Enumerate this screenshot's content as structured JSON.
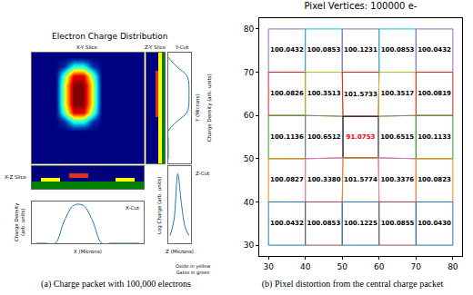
{
  "chart_data": [
    {
      "type": "composite",
      "title": "Electron Charge Distribution",
      "caption": "(a) Charge packet with 100,000 electrons",
      "tick_labels": false,
      "note": [
        "Oxide in yellow",
        "Gates in green"
      ],
      "panels": {
        "xy_slice": {
          "title": "X-Y Slice",
          "cells": [
            [
              0,
              0,
              0,
              0,
              0,
              0,
              0,
              0,
              0,
              0,
              0,
              0
            ],
            [
              0,
              0,
              0,
              0.1,
              0.4,
              0.4,
              0.1,
              0,
              0,
              0,
              0,
              0
            ],
            [
              0,
              0,
              0,
              0.5,
              0.9,
              0.9,
              0.5,
              0,
              0,
              0,
              0,
              0
            ],
            [
              0,
              0,
              0,
              0.6,
              1,
              1,
              0.6,
              0,
              0,
              0,
              0,
              0
            ],
            [
              0,
              0,
              0,
              0.6,
              1,
              1,
              0.6,
              0,
              0,
              0,
              0,
              0
            ],
            [
              0,
              0,
              0,
              0.6,
              1,
              1,
              0.6,
              0,
              0,
              0,
              0,
              0
            ],
            [
              0,
              0,
              0,
              0.5,
              0.9,
              0.9,
              0.5,
              0,
              0,
              0,
              0,
              0
            ],
            [
              0,
              0,
              0,
              0.1,
              0.4,
              0.4,
              0.1,
              0,
              0,
              0,
              0,
              0
            ],
            [
              0,
              0,
              0,
              0,
              0,
              0,
              0,
              0,
              0,
              0,
              0,
              0
            ],
            [
              0,
              0,
              0,
              0,
              0,
              0,
              0,
              0,
              0,
              0,
              0,
              0
            ],
            [
              0,
              0,
              0,
              0,
              0,
              0,
              0,
              0,
              0,
              0,
              0,
              0
            ],
            [
              0,
              0,
              0,
              0,
              0,
              0,
              0,
              0,
              0,
              0,
              0,
              0
            ]
          ]
        },
        "zy_slice": {
          "title": "Z-Y Slice",
          "cells": [
            [
              0,
              0,
              0,
              0,
              2,
              3
            ],
            [
              0,
              0,
              0,
              0,
              2,
              3
            ],
            [
              0,
              0,
              0,
              1,
              2,
              3
            ],
            [
              0,
              0,
              0,
              1,
              2,
              3
            ],
            [
              0,
              0,
              0,
              1,
              2,
              3
            ],
            [
              0,
              0,
              0,
              1,
              2,
              3
            ],
            [
              0,
              0,
              0,
              1,
              2,
              3
            ],
            [
              0,
              0,
              0,
              0,
              2,
              3
            ],
            [
              0,
              0,
              0,
              0,
              2,
              3
            ],
            [
              0,
              0,
              0,
              0,
              2,
              3
            ],
            [
              0,
              0,
              0,
              0,
              2,
              3
            ],
            [
              0,
              0,
              0,
              0,
              2,
              3
            ]
          ]
        },
        "xz_slice": {
          "title": "X-Z Slice",
          "cells": [
            [
              0,
              0,
              0,
              0,
              0,
              0,
              0,
              0,
              0,
              0,
              0,
              0
            ],
            [
              0,
              0,
              0,
              0,
              0,
              0,
              0,
              0,
              0,
              0,
              0,
              0
            ],
            [
              0,
              0,
              0,
              0,
              1,
              1,
              0,
              0,
              0,
              0,
              0,
              0
            ],
            [
              0,
              2,
              2,
              0,
              0,
              0,
              0,
              0,
              0,
              2,
              2,
              0
            ],
            [
              3,
              3,
              3,
              3,
              3,
              3,
              3,
              3,
              3,
              3,
              3,
              3
            ],
            [
              3,
              3,
              3,
              3,
              3,
              3,
              3,
              3,
              3,
              3,
              3,
              3
            ]
          ]
        },
        "y_cut": {
          "title": "Y-Cut",
          "xlabel": "Charge Density (arb. units)",
          "ylabel": "Y (Microns)",
          "y": [
            0,
            1,
            2,
            3,
            4,
            5,
            6,
            7,
            8,
            9,
            10,
            11
          ],
          "values": [
            0,
            0.4,
            0.9,
            1,
            1,
            1,
            0.9,
            0.4,
            0,
            0,
            0,
            0
          ],
          "xlim": [
            0,
            1.1
          ],
          "ylim": [
            -0.5,
            11.5
          ]
        },
        "x_cut": {
          "title": "X-Cut",
          "xlabel": "X (Microns)",
          "ylabel": "Charge Density (arb. units)",
          "x": [
            0,
            1,
            2,
            3,
            4,
            5,
            6,
            7,
            8,
            9,
            10,
            11
          ],
          "values": [
            0,
            0,
            0,
            0.6,
            1,
            1,
            0.6,
            0,
            0,
            0,
            0,
            0
          ],
          "xlim": [
            -0.5,
            11.5
          ],
          "ylim": [
            0,
            1.1
          ]
        },
        "z_cut": {
          "title": "Z-Cut",
          "xlabel": "Z (Microns)",
          "ylabel": "Log Charge (arb. units)",
          "x": [
            0,
            1,
            2,
            3,
            4,
            5
          ],
          "values": [
            -8,
            -6,
            0,
            -4,
            -7,
            -8
          ],
          "xlim": [
            -0.5,
            5.5
          ],
          "ylim": [
            -9,
            1
          ]
        }
      }
    },
    {
      "type": "polygon",
      "title": "Pixel Vertices: 100000 e-",
      "caption": "(b) Pixel distortion from the central charge packet",
      "xlim": [
        27.5,
        82.5
      ],
      "ylim": [
        27.5,
        82.5
      ],
      "xticks": [
        30,
        40,
        50,
        60,
        70,
        80
      ],
      "yticks": [
        30,
        40,
        50,
        60,
        70,
        80
      ],
      "grid": false,
      "data_labels": true,
      "vertex_x": [
        [
          30,
          40,
          50,
          60,
          70,
          80
        ],
        [
          30,
          40,
          50,
          60,
          70,
          80
        ],
        [
          30,
          40,
          50.2,
          59.8,
          70,
          80
        ],
        [
          30,
          40,
          50.2,
          59.8,
          70,
          80
        ],
        [
          30,
          40,
          50,
          60,
          70,
          80
        ],
        [
          30,
          40,
          50,
          60,
          70,
          80
        ]
      ],
      "vertex_y": [
        [
          80,
          80,
          80,
          80,
          80,
          80
        ],
        [
          70,
          70,
          70,
          70,
          70,
          70
        ],
        [
          60,
          60,
          59.8,
          59.8,
          60,
          60
        ],
        [
          50,
          50,
          50.2,
          50.2,
          50,
          50
        ],
        [
          40,
          40,
          40,
          40,
          40,
          40
        ],
        [
          30,
          30,
          30,
          30,
          30,
          30
        ]
      ],
      "values": [
        [
          100.0432,
          100.0853,
          100.1231,
          100.0853,
          100.0432
        ],
        [
          100.0826,
          100.3513,
          101.5733,
          100.3517,
          100.0819
        ],
        [
          100.1136,
          100.6512,
          91.0753,
          100.6515,
          100.1133
        ],
        [
          100.0827,
          100.338,
          101.5774,
          100.3376,
          100.0823
        ],
        [
          100.0432,
          100.0853,
          100.1225,
          100.0855,
          100.043
        ]
      ],
      "value_labels": [
        [
          "100.0432",
          "100.0853",
          "100.1231",
          "100.0853",
          "100.0432"
        ],
        [
          "100.0826",
          "100.3513",
          "101.5733",
          "100.3517",
          "100.0819"
        ],
        [
          "100.1136",
          "100.6512",
          "91.0753",
          "100.6515",
          "100.1133"
        ],
        [
          "100.0827",
          "100.3380",
          "101.5774",
          "100.3376",
          "100.0823"
        ],
        [
          "100.0432",
          "100.0853",
          "100.1225",
          "100.0855",
          "100.0430"
        ]
      ],
      "colors": [
        [
          "#9467bd",
          "#17becf",
          "#9467bd",
          "#17becf",
          "#9467bd"
        ],
        [
          "#d62728",
          "#bcbd22",
          "#d62728",
          "#bcbd22",
          "#d62728"
        ],
        [
          "#2ca02c",
          "#7f7f7f",
          "#000000",
          "#7f7f7f",
          "#2ca02c"
        ],
        [
          "#ff7f0e",
          "#e377c2",
          "#ff7f0e",
          "#e377c2",
          "#ff7f0e"
        ],
        [
          "#1f77b4",
          "#8c564b",
          "#1f77b4",
          "#8c564b",
          "#1f77b4"
        ]
      ]
    }
  ]
}
